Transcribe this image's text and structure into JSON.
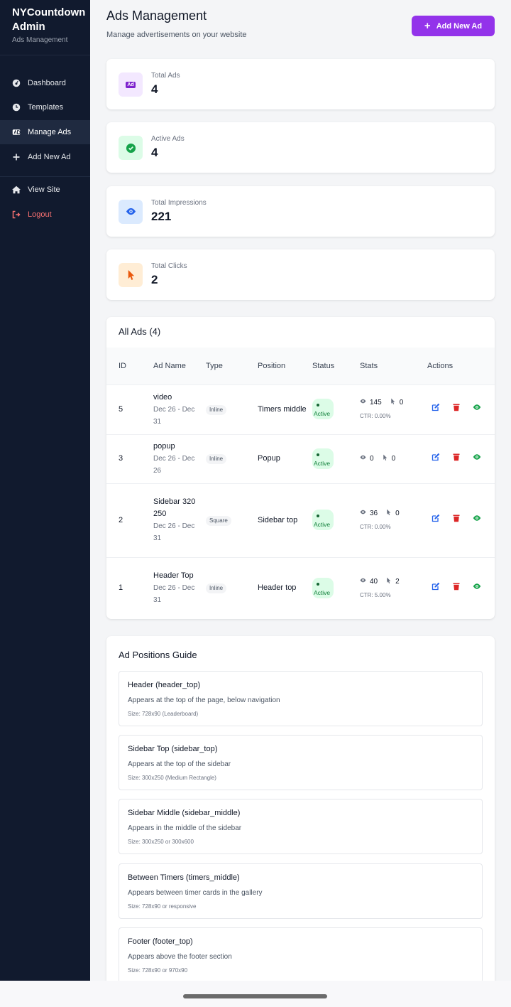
{
  "sidebar": {
    "brand": "NYCountdown Admin",
    "subtitle": "Ads Management",
    "nav": [
      {
        "label": "Dashboard"
      },
      {
        "label": "Templates"
      },
      {
        "label": "Manage Ads",
        "active": true
      },
      {
        "label": "Add New Ad"
      },
      {
        "label": "View Site"
      },
      {
        "label": "Logout"
      }
    ]
  },
  "header": {
    "title": "Ads Management",
    "subtitle": "Manage advertisements on your website",
    "button": "Add New Ad"
  },
  "stats": [
    {
      "label": "Total Ads",
      "value": 4,
      "icon_text": "Ad"
    },
    {
      "label": "Active Ads",
      "value": 4
    },
    {
      "label": "Total Impressions",
      "value": 221
    },
    {
      "label": "Total Clicks",
      "value": 2
    }
  ],
  "table": {
    "title": "All Ads (4)",
    "columns": [
      "ID",
      "Ad Name",
      "Type",
      "Position",
      "Status",
      "Stats",
      "Actions"
    ],
    "rows": [
      {
        "id": 5,
        "name": "video",
        "dates": "Dec 26 - Dec 31",
        "type": "Inline",
        "position": "Timers middle",
        "status": "Active",
        "impressions": 145,
        "clicks": 0,
        "ctr": "CTR: 0.00%"
      },
      {
        "id": 3,
        "name": "popup",
        "dates": "Dec 26 - Dec 26",
        "type": "Inline",
        "position": "Popup",
        "status": "Active",
        "impressions": 0,
        "clicks": 0,
        "ctr": null
      },
      {
        "id": 2,
        "name": "Sidebar 320 250",
        "dates": "Dec 26 - Dec 31",
        "type": "Square",
        "position": "Sidebar top",
        "status": "Active",
        "impressions": 36,
        "clicks": 0,
        "ctr": "CTR: 0.00%"
      },
      {
        "id": 1,
        "name": "Header Top",
        "dates": "Dec 26 - Dec 31",
        "type": "Inline",
        "position": "Header top",
        "status": "Active",
        "impressions": 40,
        "clicks": 2,
        "ctr": "CTR: 5.00%"
      }
    ]
  },
  "guide": {
    "title": "Ad Positions Guide",
    "items": [
      {
        "name": "Header (header_top)",
        "description": "Appears at the top of the page, below navigation",
        "size": "Size: 728x90 (Leaderboard)"
      },
      {
        "name": "Sidebar Top (sidebar_top)",
        "description": "Appears at the top of the sidebar",
        "size": "Size: 300x250 (Medium Rectangle)"
      },
      {
        "name": "Sidebar Middle (sidebar_middle)",
        "description": "Appears in the middle of the sidebar",
        "size": "Size: 300x250 or 300x600"
      },
      {
        "name": "Between Timers (timers_middle)",
        "description": "Appears between timer cards in the gallery",
        "size": "Size: 728x90 or responsive"
      },
      {
        "name": "Footer (footer_top)",
        "description": "Appears above the footer section",
        "size": "Size: 728x90 or 970x90"
      }
    ]
  }
}
